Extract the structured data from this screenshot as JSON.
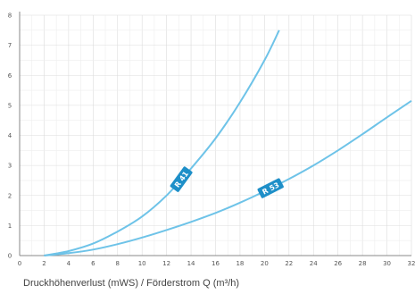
{
  "chart_data": {
    "type": "line",
    "title": "",
    "xlabel": "Druckhöhenverlust (mWS) / Förderstrom Q (m³/h)",
    "ylabel": "",
    "xlim": [
      0,
      32
    ],
    "ylim": [
      0,
      8
    ],
    "x_ticks": [
      "0",
      "2",
      "4",
      "6",
      "8",
      "10",
      "12",
      "14",
      "16",
      "18",
      "20",
      "22",
      "24",
      "26",
      "28",
      "30",
      "32"
    ],
    "y_ticks": [
      "0",
      "1",
      "2",
      "3",
      "4",
      "5",
      "6",
      "7",
      "8"
    ],
    "grid": true,
    "legend": "none",
    "line_color": "#6ec3e8",
    "label_color": "#1e8fc8",
    "series": [
      {
        "name": "R 41",
        "x": [
          2,
          4,
          6,
          8,
          10,
          12,
          14,
          16,
          18,
          20,
          21.2
        ],
        "y": [
          0,
          0.15,
          0.4,
          0.8,
          1.3,
          2.0,
          2.9,
          3.9,
          5.1,
          6.5,
          7.5
        ]
      },
      {
        "name": "R 53",
        "x": [
          2,
          4,
          6,
          8,
          10,
          12,
          14,
          16,
          18,
          20,
          22,
          24,
          26,
          28,
          30,
          32
        ],
        "y": [
          0,
          0.08,
          0.2,
          0.38,
          0.6,
          0.85,
          1.12,
          1.42,
          1.76,
          2.14,
          2.55,
          3.0,
          3.5,
          4.04,
          4.6,
          5.15
        ]
      }
    ],
    "annotations": [
      {
        "text": "R 41",
        "series": 0,
        "at_x": 13.2,
        "rotate": -54
      },
      {
        "text": "R 53",
        "series": 1,
        "at_x": 20.5,
        "rotate": -27
      }
    ]
  }
}
